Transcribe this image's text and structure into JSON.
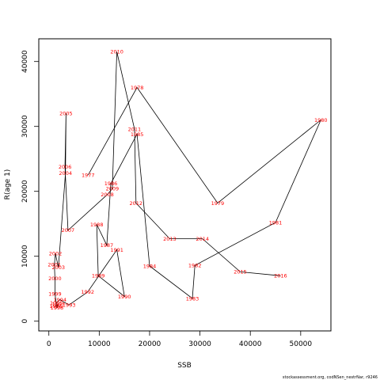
{
  "chart_data": {
    "type": "line",
    "xlabel": "SSB",
    "ylabel": "R(age 1)",
    "xlim": [
      -2000,
      56000
    ],
    "ylim": [
      -1500,
      43500
    ],
    "xticks": [
      0,
      10000,
      20000,
      30000,
      40000,
      50000
    ],
    "yticks": [
      0,
      10000,
      20000,
      30000,
      40000
    ],
    "grid": false,
    "marker_color": "#ff0000",
    "line_color": "#000000",
    "points": [
      {
        "year": "1977",
        "x": 7800,
        "y": 22500
      },
      {
        "year": "1978",
        "x": 17500,
        "y": 36000
      },
      {
        "year": "1979",
        "x": 33500,
        "y": 18200
      },
      {
        "year": "1980",
        "x": 54000,
        "y": 31000
      },
      {
        "year": "1981",
        "x": 45000,
        "y": 15200
      },
      {
        "year": "1982",
        "x": 29000,
        "y": 8600
      },
      {
        "year": "1983",
        "x": 28500,
        "y": 3500
      },
      {
        "year": "1984",
        "x": 20000,
        "y": 8500
      },
      {
        "year": "1985",
        "x": 17500,
        "y": 28800
      },
      {
        "year": "1986",
        "x": 12300,
        "y": 21200
      },
      {
        "year": "1987",
        "x": 11500,
        "y": 11700
      },
      {
        "year": "1988",
        "x": 9500,
        "y": 14900
      },
      {
        "year": "1989",
        "x": 9800,
        "y": 7000
      },
      {
        "year": "1990",
        "x": 15000,
        "y": 3800
      },
      {
        "year": "1991",
        "x": 13500,
        "y": 11000
      },
      {
        "year": "1992",
        "x": 7700,
        "y": 4500
      },
      {
        "year": "1993",
        "x": 4000,
        "y": 2500
      },
      {
        "year": "1994",
        "x": 2200,
        "y": 3300
      },
      {
        "year": "1995",
        "x": 1500,
        "y": 2800
      },
      {
        "year": "1996",
        "x": 1400,
        "y": 2300
      },
      {
        "year": "1997",
        "x": 1900,
        "y": 2600
      },
      {
        "year": "1998",
        "x": 1600,
        "y": 2100
      },
      {
        "year": "1999",
        "x": 1200,
        "y": 4200
      },
      {
        "year": "2000",
        "x": 1200,
        "y": 6600
      },
      {
        "year": "2001",
        "x": 1100,
        "y": 8700
      },
      {
        "year": "2002",
        "x": 1300,
        "y": 10400
      },
      {
        "year": "2003",
        "x": 1900,
        "y": 8300
      },
      {
        "year": "2004",
        "x": 3300,
        "y": 22800
      },
      {
        "year": "2005",
        "x": 3400,
        "y": 32000
      },
      {
        "year": "2006",
        "x": 3200,
        "y": 23800
      },
      {
        "year": "2007",
        "x": 3800,
        "y": 14000
      },
      {
        "year": "2008",
        "x": 11600,
        "y": 19500
      },
      {
        "year": "2009",
        "x": 12600,
        "y": 20400
      },
      {
        "year": "2010",
        "x": 13500,
        "y": 41500
      },
      {
        "year": "2011",
        "x": 17000,
        "y": 29600
      },
      {
        "year": "2012",
        "x": 17300,
        "y": 18200
      },
      {
        "year": "2013",
        "x": 24000,
        "y": 12700
      },
      {
        "year": "2014",
        "x": 30500,
        "y": 12700
      },
      {
        "year": "2015",
        "x": 38000,
        "y": 7600
      },
      {
        "year": "2016",
        "x": 46000,
        "y": 7000
      }
    ]
  },
  "footer": {
    "source_text": "stockassessment.org, codNSen_nestrNar, r9246"
  }
}
